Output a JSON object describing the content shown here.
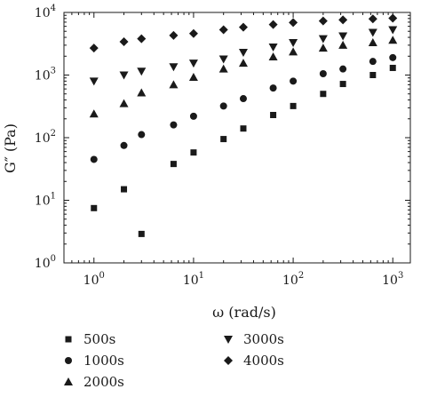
{
  "chart_data": {
    "type": "scatter",
    "title": "",
    "xlabel": "ω (rad/s)",
    "ylabel": "G″ (Pa)",
    "x_scale": "log",
    "y_scale": "log",
    "xlim": [
      0.5,
      1500
    ],
    "ylim": [
      1,
      10000
    ],
    "x_ticks": [
      {
        "base": "10",
        "exp": "0",
        "value": 1
      },
      {
        "base": "10",
        "exp": "1",
        "value": 10
      },
      {
        "base": "10",
        "exp": "2",
        "value": 100
      },
      {
        "base": "10",
        "exp": "3",
        "value": 1000
      }
    ],
    "y_ticks": [
      {
        "base": "10",
        "exp": "0",
        "value": 1
      },
      {
        "base": "10",
        "exp": "1",
        "value": 10
      },
      {
        "base": "10",
        "exp": "2",
        "value": 100
      },
      {
        "base": "10",
        "exp": "3",
        "value": 1000
      },
      {
        "base": "10",
        "exp": "4",
        "value": 10000
      }
    ],
    "grid": false,
    "legend_position": "bottom",
    "series": [
      {
        "name": "500s",
        "marker": "square",
        "x": [
          1,
          2,
          3,
          6.3,
          10,
          20,
          31.6,
          63,
          100,
          200,
          316,
          631,
          1000
        ],
        "y": [
          7.5,
          15,
          2.9,
          38,
          58,
          95,
          140,
          230,
          320,
          500,
          720,
          1000,
          1300
        ]
      },
      {
        "name": "1000s",
        "marker": "circle",
        "x": [
          1,
          2,
          3,
          6.3,
          10,
          20,
          31.6,
          63,
          100,
          200,
          316,
          631,
          1000
        ],
        "y": [
          45,
          75,
          112,
          160,
          220,
          320,
          420,
          620,
          800,
          1050,
          1250,
          1650,
          1900
        ]
      },
      {
        "name": "2000s",
        "marker": "triangle-up",
        "x": [
          1,
          2,
          3,
          6.3,
          10,
          20,
          31.6,
          63,
          100,
          200,
          316,
          631,
          1000
        ],
        "y": [
          240,
          350,
          520,
          700,
          920,
          1250,
          1550,
          1950,
          2350,
          2700,
          3000,
          3300,
          3600
        ]
      },
      {
        "name": "3000s",
        "marker": "triangle-down",
        "x": [
          1,
          2,
          3,
          6.3,
          10,
          20,
          31.6,
          63,
          100,
          200,
          316,
          631,
          1000
        ],
        "y": [
          800,
          1000,
          1150,
          1350,
          1550,
          1800,
          2300,
          2800,
          3300,
          3800,
          4200,
          4800,
          5300
        ]
      },
      {
        "name": "4000s",
        "marker": "diamond",
        "x": [
          1,
          2,
          3,
          6.3,
          10,
          20,
          31.6,
          63,
          100,
          200,
          316,
          631,
          1000
        ],
        "y": [
          2700,
          3400,
          3800,
          4300,
          4600,
          5300,
          5800,
          6400,
          6900,
          7300,
          7600,
          7900,
          8100
        ]
      }
    ]
  }
}
